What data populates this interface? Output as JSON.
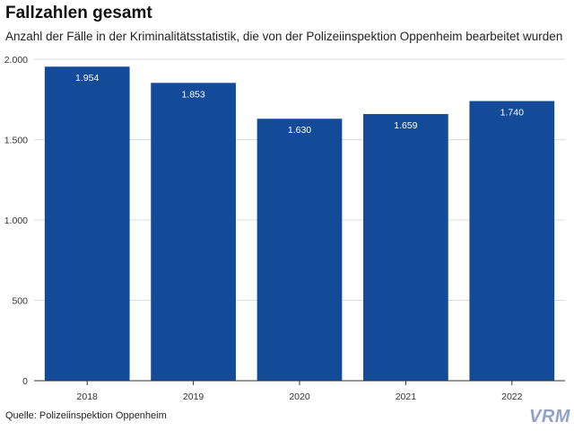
{
  "title": "Fallzahlen gesamt",
  "subtitle": "Anzahl der Fälle in der Kriminalitätsstatistik, die von der Polizeiinspektion Oppenheim bearbeitet wurden",
  "source": "Quelle: Polizeiinspektion Oppenheim",
  "logo": "VRM",
  "colors": {
    "bar": "#134b98",
    "grid": "#dcdcdc",
    "axis": "#333333"
  },
  "chart_data": {
    "type": "bar",
    "categories": [
      "2018",
      "2019",
      "2020",
      "2021",
      "2022"
    ],
    "values": [
      1954,
      1853,
      1630,
      1659,
      1740
    ],
    "value_labels": [
      "1.954",
      "1.853",
      "1.630",
      "1.659",
      "1.740"
    ],
    "title": "Fallzahlen gesamt",
    "xlabel": "",
    "ylabel": "",
    "ylim": [
      0,
      2000
    ],
    "yticks": [
      0,
      500,
      1000,
      1500,
      2000
    ],
    "ytick_labels": [
      "0",
      "500",
      "1.000",
      "1.500",
      "2.000"
    ],
    "grid": true,
    "legend": "none"
  }
}
